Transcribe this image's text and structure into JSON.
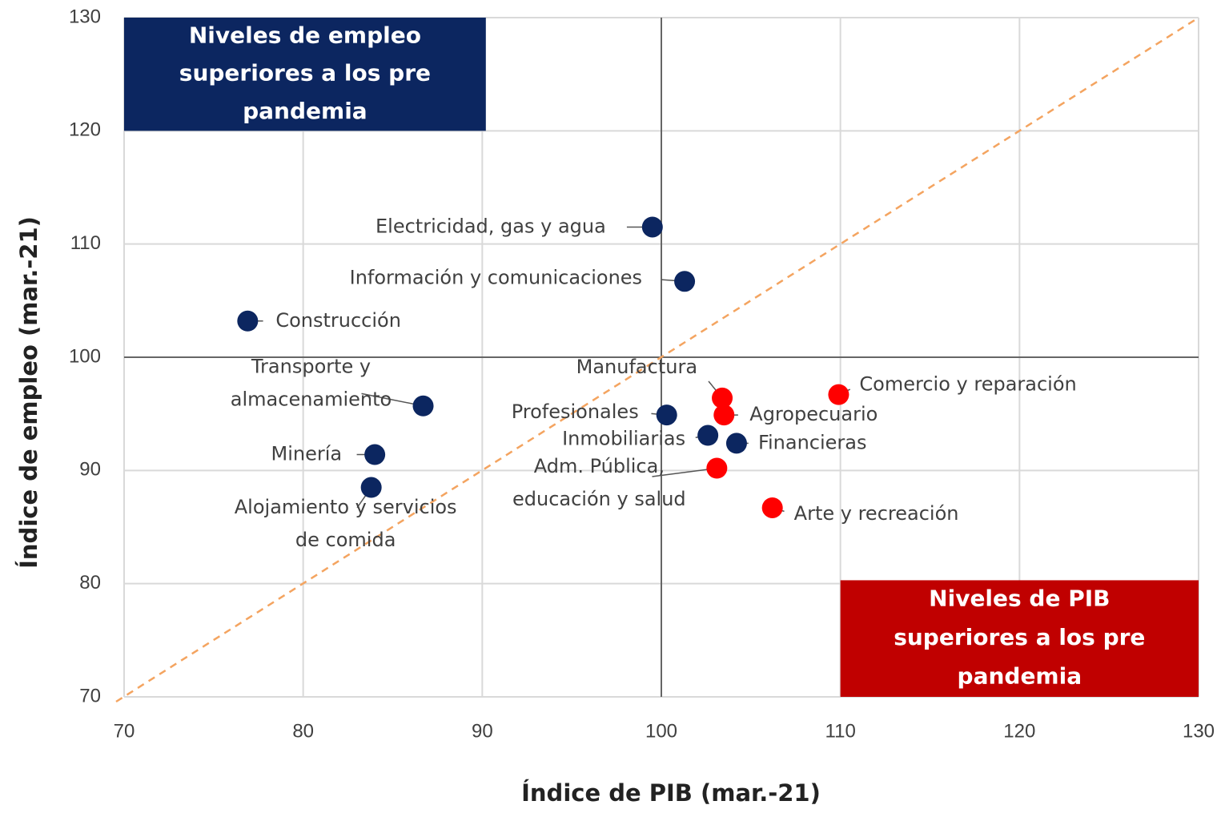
{
  "chart_data": {
    "type": "scatter",
    "x_label": "Índice de PIB (mar.-21)",
    "y_label": "Índice de empleo (mar.-21)",
    "xlim": [
      70,
      130
    ],
    "ylim": [
      70,
      130
    ],
    "xticks": [
      70,
      80,
      90,
      100,
      110,
      120,
      130
    ],
    "yticks": [
      70,
      80,
      90,
      100,
      110,
      120,
      130
    ],
    "grid": true,
    "reference_lines": {
      "x": 100,
      "y": 100
    },
    "diagonal": true,
    "series": [
      {
        "color": "#0c2660",
        "points": [
          {
            "label": [
              "Electricidad, gas y agua"
            ],
            "x": 99.5,
            "y": 111.5
          },
          {
            "label": [
              "Información y comunicaciones"
            ],
            "x": 101.3,
            "y": 106.7
          },
          {
            "label": [
              "Construcción"
            ],
            "x": 76.9,
            "y": 103.2
          },
          {
            "label": [
              "Transporte y",
              "almacenamiento"
            ],
            "x": 86.7,
            "y": 95.7
          },
          {
            "label": [
              "Minería"
            ],
            "x": 84.0,
            "y": 91.4
          },
          {
            "label": [
              "Alojamiento y servicios",
              "de comida"
            ],
            "x": 83.8,
            "y": 88.5
          },
          {
            "label": [
              "Profesionales"
            ],
            "x": 100.3,
            "y": 94.9
          },
          {
            "label": [
              "Inmobiliarias"
            ],
            "x": 102.6,
            "y": 93.1
          },
          {
            "label": [
              "Financieras"
            ],
            "x": 104.2,
            "y": 92.4
          }
        ]
      },
      {
        "color": "#ff0000",
        "points": [
          {
            "label": [
              "Manufactura"
            ],
            "x": 103.4,
            "y": 96.4
          },
          {
            "label": [
              "Agropecuario"
            ],
            "x": 103.5,
            "y": 94.9
          },
          {
            "label": [
              "Adm. Pública,",
              "educación y salud"
            ],
            "x": 103.1,
            "y": 90.2
          },
          {
            "label": [
              "Comercio y reparación"
            ],
            "x": 109.9,
            "y": 96.7
          },
          {
            "label": [
              "Arte y recreación"
            ],
            "x": 106.2,
            "y": 86.7
          }
        ]
      }
    ],
    "annotations": [
      {
        "text": [
          "Niveles de empleo",
          "superiores a los pre",
          "pandemia"
        ],
        "color": "#0c2660",
        "x": [
          70,
          90.2
        ],
        "y": [
          120,
          130
        ]
      },
      {
        "text": [
          "Niveles de PIB",
          "superiores a los pre",
          "pandemia"
        ],
        "color": "#c00000",
        "x": [
          110,
          130
        ],
        "y": [
          70,
          80.3
        ]
      }
    ]
  }
}
